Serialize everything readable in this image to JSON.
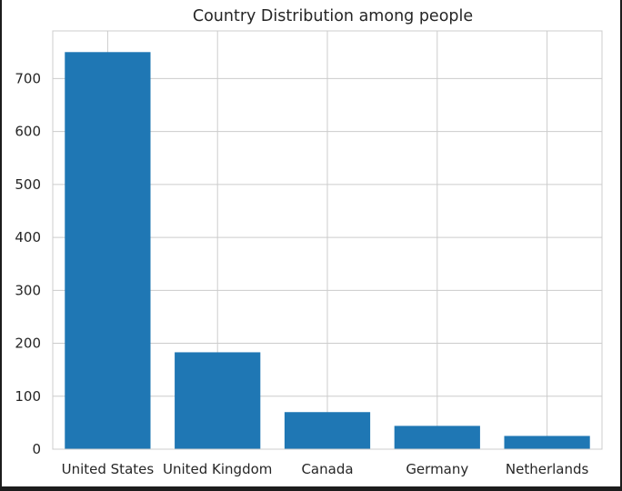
{
  "chart_data": {
    "type": "bar",
    "title": "Country Distribution among people",
    "xlabel": "",
    "ylabel": "",
    "categories": [
      "United States",
      "United Kingdom",
      "Canada",
      "Germany",
      "Netherlands"
    ],
    "values": [
      750,
      183,
      70,
      44,
      25
    ],
    "ylim": [
      0,
      790
    ],
    "yticks": [
      0,
      100,
      200,
      300,
      400,
      500,
      600,
      700
    ],
    "grid": true,
    "bar_color": "#1f77b4",
    "grid_color": "#cccccc"
  }
}
